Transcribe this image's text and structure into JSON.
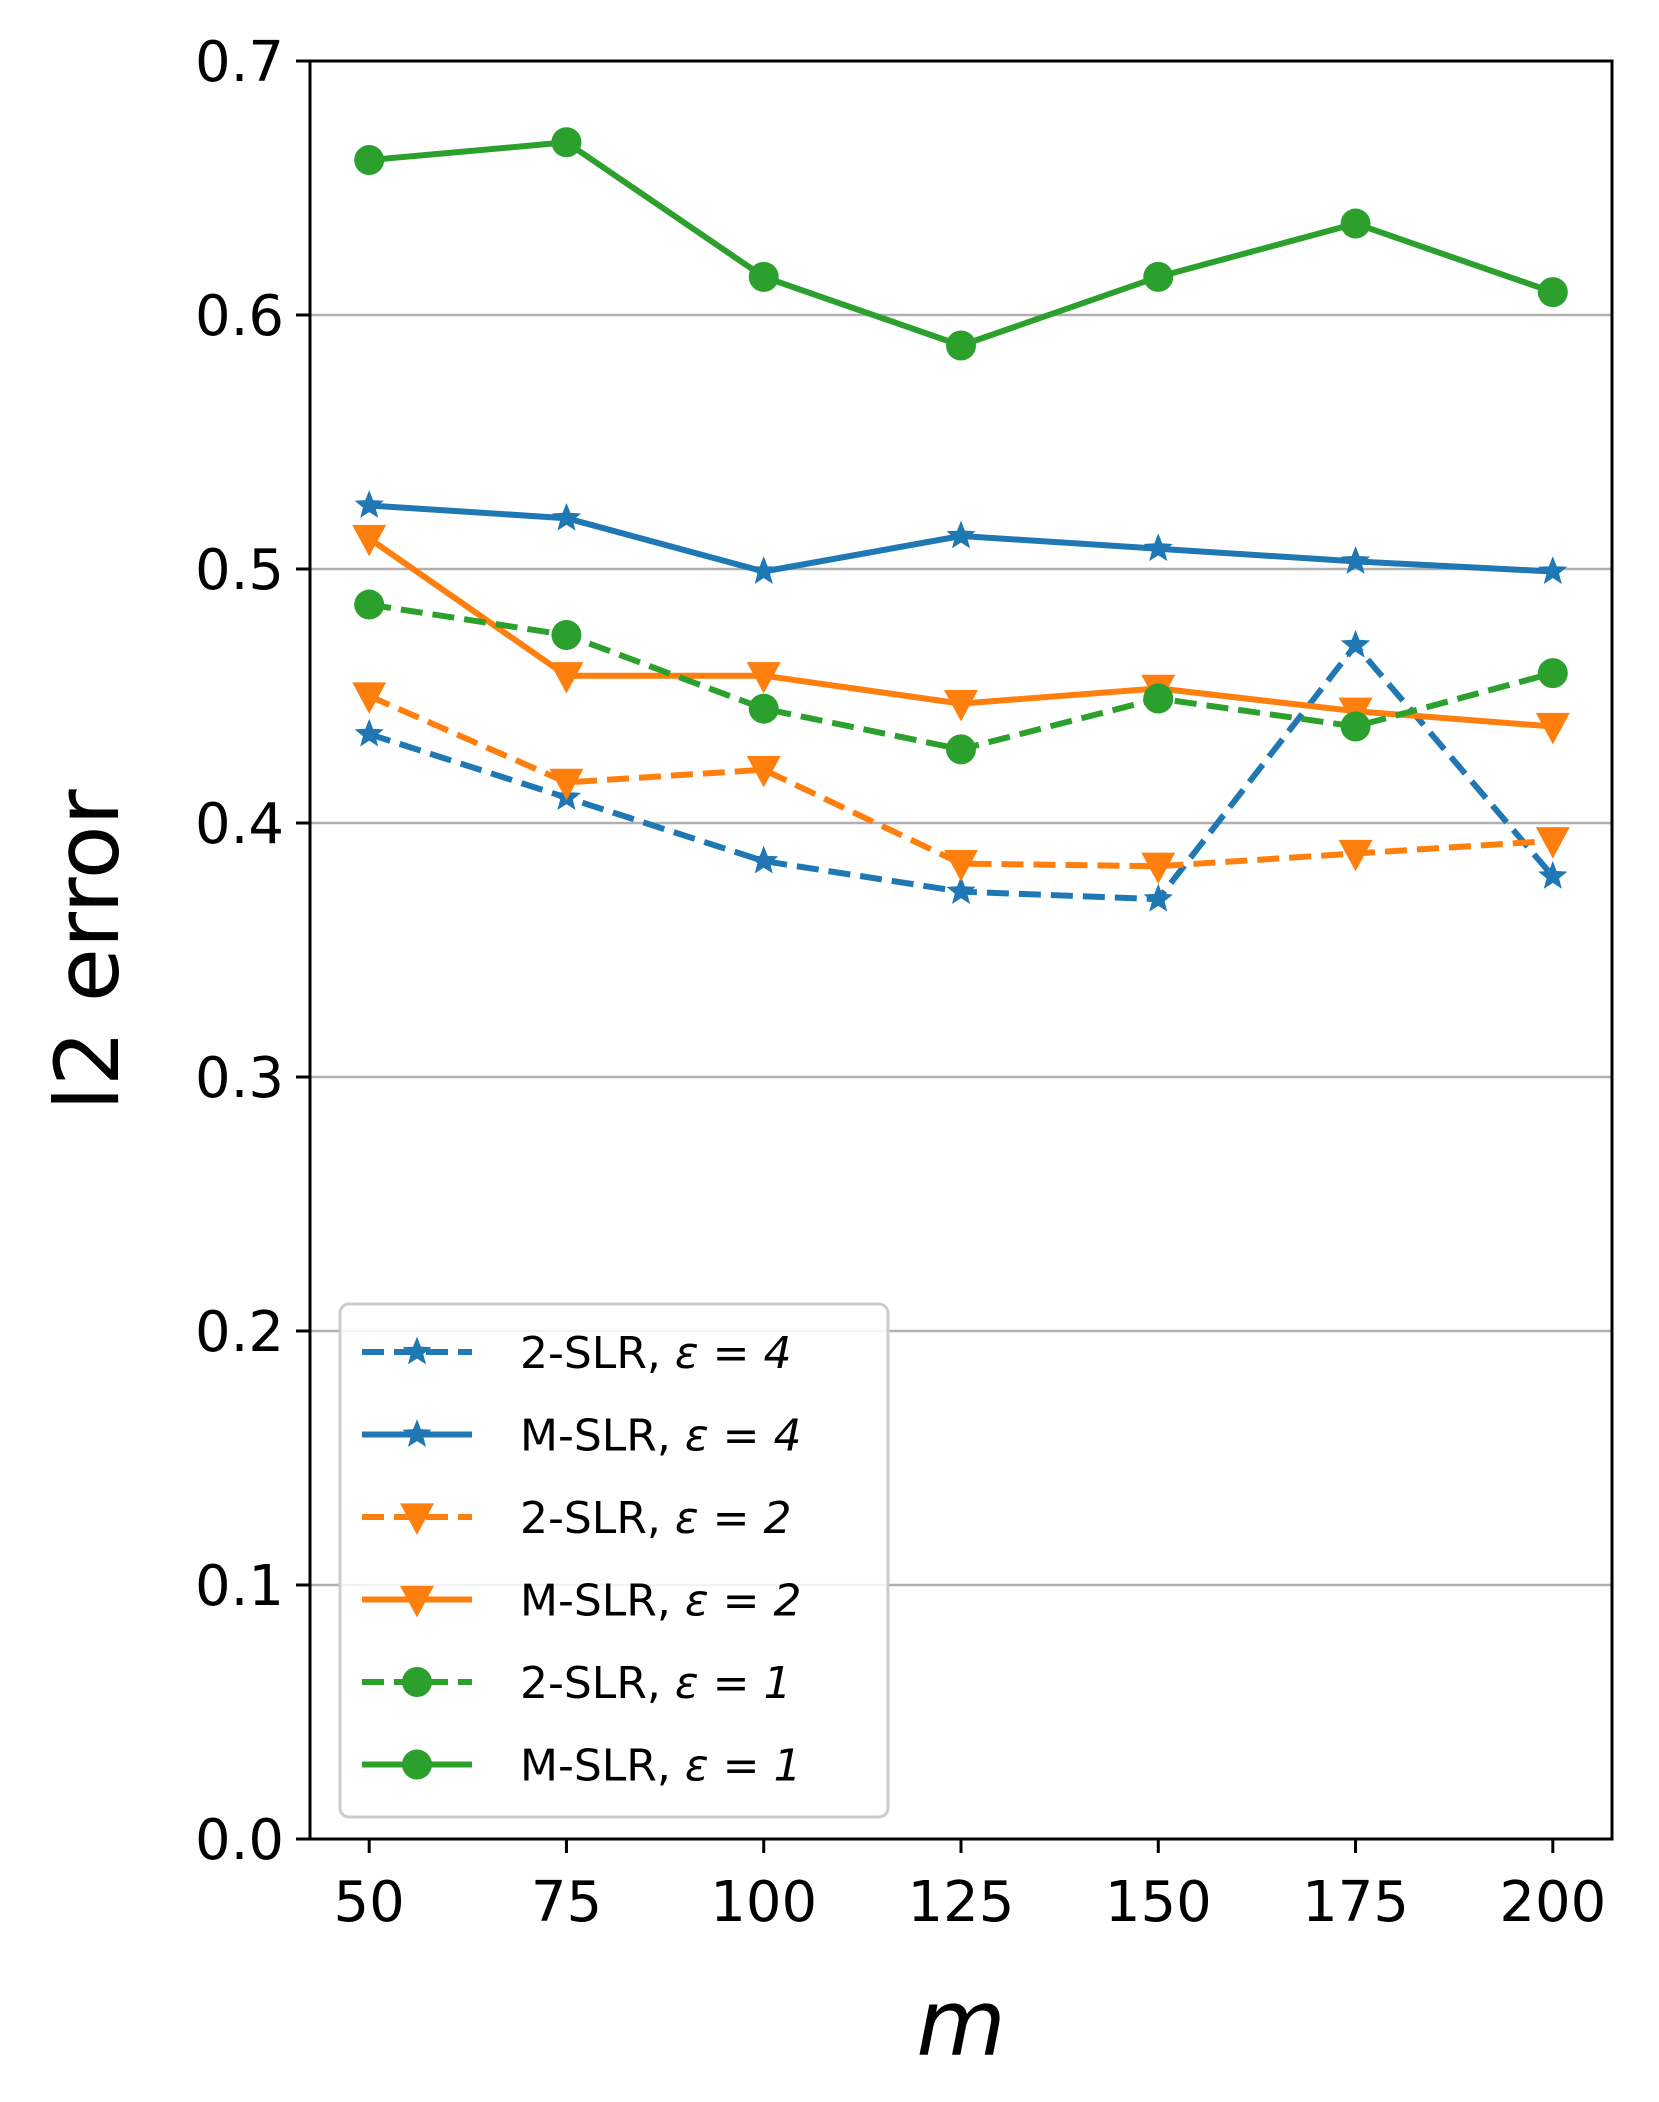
{
  "chart_data": {
    "type": "line",
    "xlabel": "m",
    "ylabel": "l2 error",
    "x": [
      50,
      75,
      100,
      125,
      150,
      175,
      200
    ],
    "xticks": [
      "50",
      "75",
      "100",
      "125",
      "150",
      "175",
      "200"
    ],
    "ylim": [
      0.0,
      0.7
    ],
    "yticks": [
      "0.0",
      "0.1",
      "0.2",
      "0.3",
      "0.4",
      "0.5",
      "0.6",
      "0.7"
    ],
    "grid": "horizontal",
    "legend_position": "lower-left",
    "series": [
      {
        "name": "2-SLR, ε = 4",
        "label_text": "2-SLR, ",
        "eps": "ε = 4",
        "color": "#1f77b4",
        "dashed": true,
        "marker": "star",
        "values": [
          0.435,
          0.41,
          0.385,
          0.373,
          0.37,
          0.47,
          0.379
        ]
      },
      {
        "name": "M-SLR, ε = 4",
        "label_text": "M-SLR, ",
        "eps": "ε = 4",
        "color": "#1f77b4",
        "dashed": false,
        "marker": "star",
        "values": [
          0.525,
          0.52,
          0.499,
          0.513,
          0.508,
          0.503,
          0.499
        ]
      },
      {
        "name": "2-SLR, ε = 2",
        "label_text": "2-SLR, ",
        "eps": "ε = 2",
        "color": "#ff7f0e",
        "dashed": true,
        "marker": "triangle-down",
        "values": [
          0.45,
          0.416,
          0.421,
          0.384,
          0.383,
          0.388,
          0.393
        ]
      },
      {
        "name": "M-SLR, ε = 2",
        "label_text": "M-SLR, ",
        "eps": "ε = 2",
        "color": "#ff7f0e",
        "dashed": false,
        "marker": "triangle-down",
        "values": [
          0.512,
          0.458,
          0.458,
          0.447,
          0.453,
          0.444,
          0.438
        ]
      },
      {
        "name": "2-SLR, ε = 1",
        "label_text": "2-SLR, ",
        "eps": "ε = 1",
        "color": "#2ca02c",
        "dashed": true,
        "marker": "circle",
        "values": [
          0.486,
          0.474,
          0.445,
          0.429,
          0.449,
          0.438,
          0.459
        ]
      },
      {
        "name": "M-SLR, ε = 1",
        "label_text": "M-SLR, ",
        "eps": "ε = 1",
        "color": "#2ca02c",
        "dashed": false,
        "marker": "circle",
        "values": [
          0.661,
          0.668,
          0.615,
          0.588,
          0.615,
          0.636,
          0.609
        ]
      }
    ]
  }
}
